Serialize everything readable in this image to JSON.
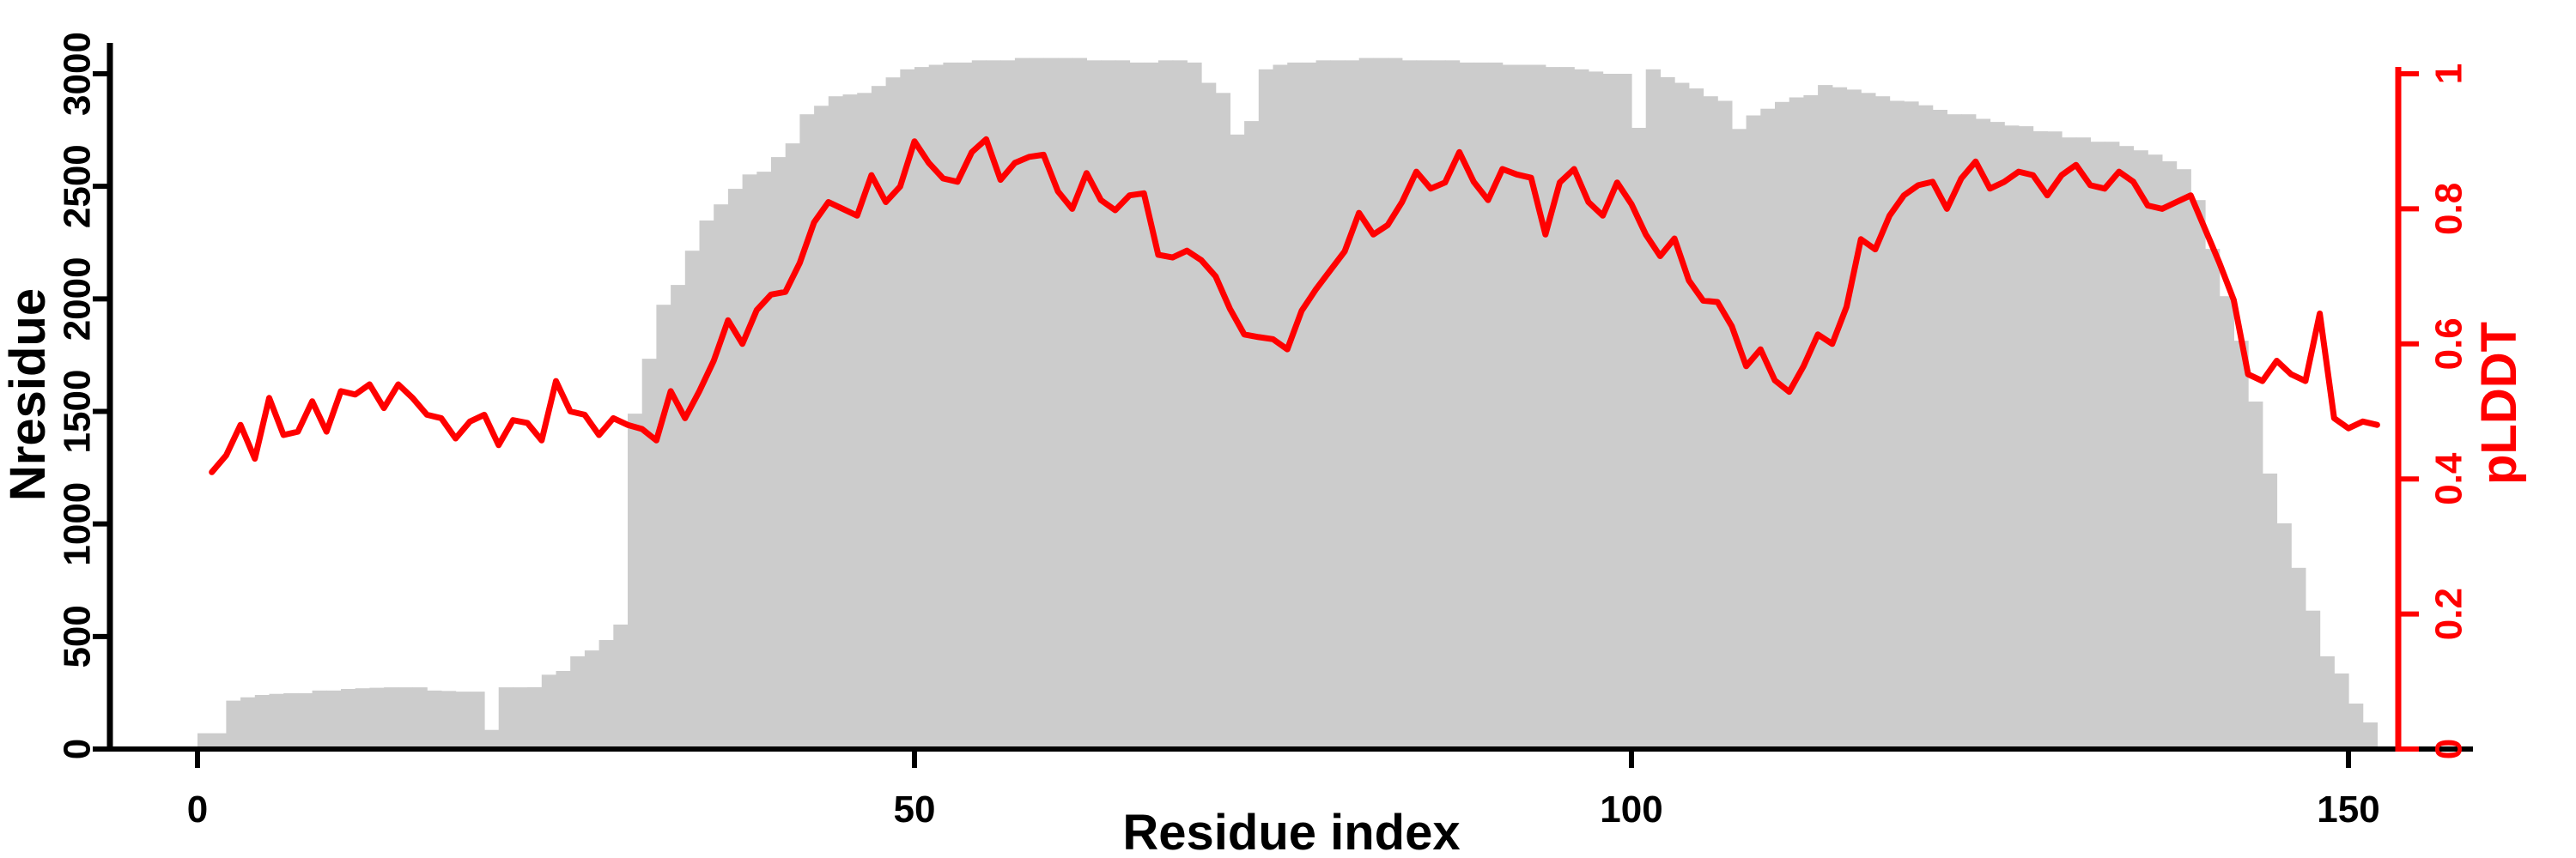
{
  "chart_data": {
    "type": "bar",
    "subtype": "dual-axis bar+line",
    "title": "",
    "xlabel": "Residue index",
    "x_ticks": [
      0,
      50,
      100,
      150
    ],
    "x_start_residue": 1,
    "x_end_residue": 152,
    "left_axis": {
      "label": "Nresidue",
      "ticks": [
        0,
        500,
        1000,
        1500,
        2000,
        2500,
        3000
      ],
      "range": [
        0,
        3000
      ],
      "color": "#000000"
    },
    "right_axis": {
      "label": "pLDDT",
      "tick_labels": [
        "0",
        "0.2",
        "0.4",
        "0.6",
        "0.8",
        "1"
      ],
      "tick_values": [
        0,
        0.2,
        0.4,
        0.6,
        0.8,
        1
      ],
      "range": [
        0,
        1
      ],
      "color": "#ff0000"
    },
    "bar_color": "#cccccc",
    "line_color": "#ff0000",
    "axis_color": "#000000",
    "series": [
      {
        "name": "Nresidue",
        "type": "bar",
        "axis": "left",
        "values": [
          70,
          70,
          215,
          230,
          240,
          245,
          248,
          248,
          260,
          260,
          267,
          270,
          272,
          274,
          274,
          274,
          260,
          258,
          255,
          255,
          85,
          274,
          274,
          275,
          330,
          347,
          412,
          438,
          484,
          553,
          1490,
          1734,
          1974,
          2062,
          2214,
          2348,
          2420,
          2489,
          2553,
          2565,
          2630,
          2691,
          2820,
          2858,
          2900,
          2908,
          2915,
          2946,
          2984,
          3020,
          3030,
          3040,
          3050,
          3050,
          3060,
          3060,
          3060,
          3070,
          3070,
          3070,
          3070,
          3070,
          3060,
          3060,
          3060,
          3050,
          3050,
          3060,
          3060,
          3050,
          2960,
          2915,
          2730,
          2790,
          3020,
          3040,
          3050,
          3050,
          3060,
          3060,
          3060,
          3070,
          3070,
          3070,
          3060,
          3060,
          3060,
          3060,
          3050,
          3050,
          3050,
          3040,
          3040,
          3040,
          3030,
          3030,
          3020,
          3010,
          3000,
          3000,
          2760,
          3020,
          2985,
          2960,
          2935,
          2900,
          2880,
          2755,
          2815,
          2845,
          2875,
          2895,
          2905,
          2950,
          2940,
          2930,
          2915,
          2900,
          2880,
          2877,
          2860,
          2840,
          2820,
          2820,
          2800,
          2786,
          2770,
          2767,
          2745,
          2744,
          2717,
          2717,
          2698,
          2698,
          2679,
          2660,
          2641,
          2611,
          2576,
          2439,
          2222,
          2012,
          1814,
          1544,
          1224,
          1003,
          805,
          615,
          412,
          336,
          202,
          118
        ]
      },
      {
        "name": "pLDDT",
        "type": "line",
        "axis": "right",
        "values": [
          0.41,
          0.435,
          0.48,
          0.43,
          0.52,
          0.465,
          0.47,
          0.515,
          0.47,
          0.53,
          0.525,
          0.54,
          0.505,
          0.54,
          0.52,
          0.495,
          0.49,
          0.46,
          0.485,
          0.495,
          0.45,
          0.487,
          0.483,
          0.457,
          0.545,
          0.5,
          0.495,
          0.465,
          0.49,
          0.48,
          0.474,
          0.457,
          0.53,
          0.49,
          0.53,
          0.575,
          0.635,
          0.6,
          0.65,
          0.673,
          0.677,
          0.72,
          0.78,
          0.81,
          0.8,
          0.79,
          0.85,
          0.81,
          0.833,
          0.9,
          0.868,
          0.845,
          0.84,
          0.884,
          0.903,
          0.843,
          0.868,
          0.877,
          0.88,
          0.826,
          0.8,
          0.853,
          0.813,
          0.798,
          0.82,
          0.823,
          0.732,
          0.728,
          0.738,
          0.724,
          0.7,
          0.652,
          0.614,
          0.61,
          0.607,
          0.592,
          0.649,
          0.681,
          0.709,
          0.737,
          0.794,
          0.762,
          0.776,
          0.81,
          0.855,
          0.83,
          0.839,
          0.884,
          0.84,
          0.813,
          0.859,
          0.851,
          0.846,
          0.762,
          0.839,
          0.859,
          0.81,
          0.79,
          0.839,
          0.807,
          0.762,
          0.73,
          0.756,
          0.694,
          0.664,
          0.662,
          0.626,
          0.567,
          0.592,
          0.546,
          0.529,
          0.567,
          0.614,
          0.6,
          0.655,
          0.755,
          0.74,
          0.79,
          0.82,
          0.835,
          0.84,
          0.8,
          0.845,
          0.87,
          0.83,
          0.84,
          0.855,
          0.85,
          0.82,
          0.85,
          0.865,
          0.835,
          0.83,
          0.855,
          0.84,
          0.805,
          0.8,
          0.81,
          0.82,
          0.77,
          0.72,
          0.665,
          0.555,
          0.545,
          0.575,
          0.555,
          0.545,
          0.645,
          0.49,
          0.475,
          0.485,
          0.48
        ]
      }
    ],
    "layout_hints": {
      "grid": false,
      "legend": false,
      "bars_plateau_exceeds_top_tick": true
    }
  }
}
